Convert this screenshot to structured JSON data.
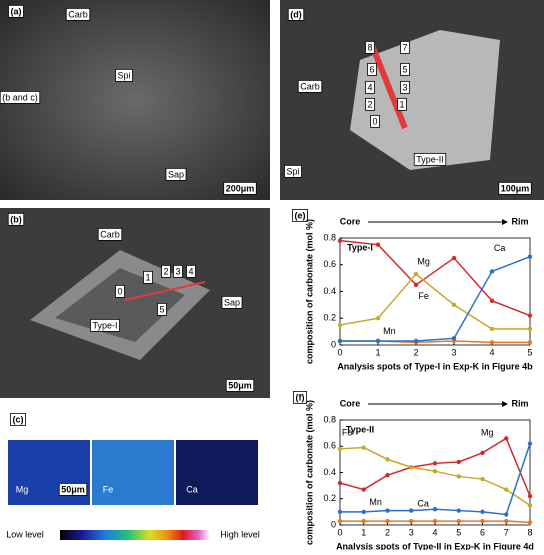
{
  "panel_a": {
    "label": "(a)",
    "texts": [
      "Carb",
      "Spi",
      "(b and c)",
      "Sap",
      "200μm"
    ]
  },
  "panel_d": {
    "label": "(d)",
    "texts": [
      "8",
      "7",
      "6",
      "5",
      "4",
      "3",
      "2",
      "1",
      "0",
      "Carb",
      "Type-II",
      "Spi",
      "100μm"
    ]
  },
  "panel_b": {
    "label": "(b)",
    "texts": [
      "Carb",
      "1",
      "2",
      "3",
      "4",
      "0",
      "5",
      "Type-I",
      "Sap",
      "50μm"
    ]
  },
  "panel_c": {
    "label": "(c)",
    "texts": [
      "Mg",
      "Fe",
      "Ca",
      "50μm"
    ],
    "low": "Low level",
    "high": "High level"
  },
  "chart_data": [
    {
      "type": "line",
      "panel": "(e)",
      "title": "Type-I",
      "start": "Core",
      "end": "Rim",
      "y_label": "composition of carbonate (mol %)",
      "x_label": "Analysis spots of Type-I in Exp-K in Figure 4b",
      "x": [
        0,
        1,
        2,
        3,
        4,
        5
      ],
      "xlim": [
        0,
        5
      ],
      "xticks": [
        0,
        1,
        2,
        3,
        4,
        5
      ],
      "ylim": [
        0,
        0.8
      ],
      "yticks": [
        0,
        0.2,
        0.4,
        0.6,
        0.8
      ],
      "series": [
        {
          "name": "Mg",
          "color": "#d42a2a",
          "values": [
            0.78,
            0.75,
            0.45,
            0.65,
            0.33,
            0.22
          ]
        },
        {
          "name": "Fe",
          "color": "#c8a82a",
          "values": [
            0.15,
            0.2,
            0.53,
            0.3,
            0.12,
            0.12
          ]
        },
        {
          "name": "Mn",
          "color": "#e07a2a",
          "values": [
            0.03,
            0.03,
            0.02,
            0.03,
            0.02,
            0.02
          ]
        },
        {
          "name": "Ca",
          "color": "#2a6fc8",
          "values": [
            0.03,
            0.03,
            0.03,
            0.05,
            0.55,
            0.66
          ]
        }
      ]
    },
    {
      "type": "line",
      "panel": "(f)",
      "title": "Type-II",
      "start": "Core",
      "end": "Rim",
      "y_label": "composition of carbonate (mol %)",
      "x_label": "Analysis spots of Type-II in Exp-K in Figure 4d",
      "x": [
        0,
        1,
        2,
        3,
        4,
        5,
        6,
        7,
        8
      ],
      "xlim": [
        0,
        8
      ],
      "xticks": [
        0,
        1,
        2,
        3,
        4,
        5,
        6,
        7,
        8
      ],
      "ylim": [
        0,
        0.8
      ],
      "yticks": [
        0,
        0.2,
        0.4,
        0.6,
        0.8
      ],
      "series": [
        {
          "name": "Mg",
          "color": "#d42a2a",
          "values": [
            0.32,
            0.27,
            0.38,
            0.44,
            0.47,
            0.48,
            0.55,
            0.66,
            0.22
          ]
        },
        {
          "name": "Fe",
          "color": "#c8a82a",
          "values": [
            0.58,
            0.59,
            0.5,
            0.44,
            0.41,
            0.37,
            0.35,
            0.27,
            0.15
          ]
        },
        {
          "name": "Mn",
          "color": "#e07a2a",
          "values": [
            0.03,
            0.03,
            0.03,
            0.03,
            0.03,
            0.03,
            0.03,
            0.03,
            0.02
          ]
        },
        {
          "name": "Ca",
          "color": "#2a6fc8",
          "values": [
            0.1,
            0.1,
            0.11,
            0.11,
            0.12,
            0.11,
            0.1,
            0.08,
            0.62
          ]
        }
      ]
    }
  ]
}
